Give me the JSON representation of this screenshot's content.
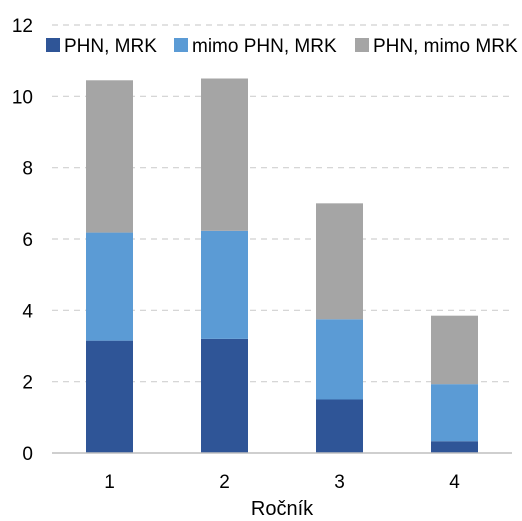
{
  "chart_data": {
    "type": "bar",
    "stacked": true,
    "categories": [
      "1",
      "2",
      "3",
      "4"
    ],
    "series": [
      {
        "name": "PHN, MRK",
        "color": "#2f5597",
        "values": [
          3.15,
          3.2,
          1.5,
          0.33
        ]
      },
      {
        "name": "mimo PHN, MRK",
        "color": "#5b9bd5",
        "values": [
          3.03,
          3.03,
          2.25,
          1.6
        ]
      },
      {
        "name": "PHN, mimo MRK",
        "color": "#a5a5a5",
        "values": [
          4.27,
          4.27,
          3.25,
          1.92
        ]
      }
    ],
    "xlabel": "Ročník",
    "ylabel": "",
    "ylim": [
      0,
      12
    ],
    "yticks": [
      "0",
      "2",
      "4",
      "6",
      "8",
      "10",
      "12"
    ],
    "grid": true,
    "legend_position": "top"
  }
}
